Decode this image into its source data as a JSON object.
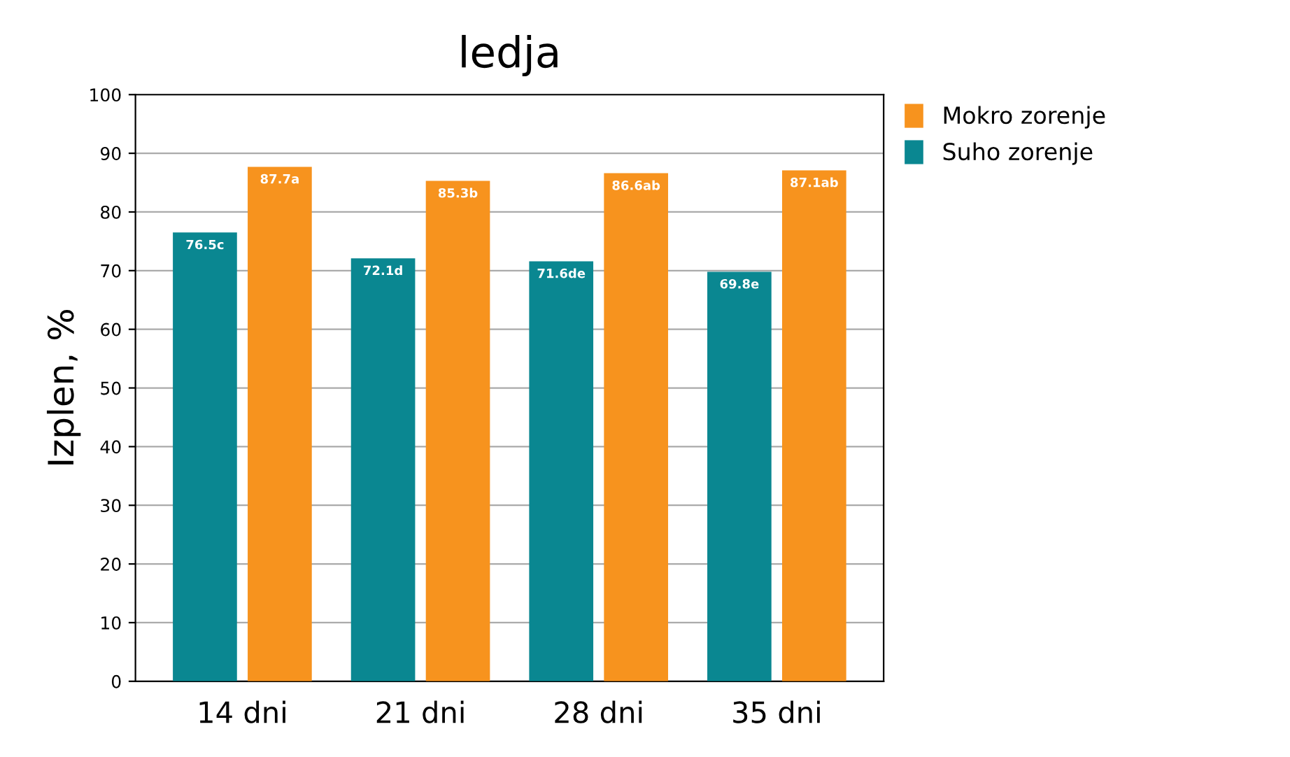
{
  "chart_data": {
    "type": "bar",
    "title": "ledja",
    "ylabel": "Izplen, %",
    "categories": [
      "14 dni",
      "21 dni",
      "28 dni",
      "35 dni"
    ],
    "series": [
      {
        "name": "Suho zorenje",
        "color": "#0a8791",
        "values": [
          76.5,
          72.1,
          71.6,
          69.8
        ],
        "value_labels": [
          "76.5c",
          "72.1d",
          "71.6de",
          "69.8e"
        ]
      },
      {
        "name": "Mokro zorenje",
        "color": "#f7931e",
        "values": [
          87.7,
          85.3,
          86.6,
          87.1
        ],
        "value_labels": [
          "87.7a",
          "85.3b",
          "86.6ab",
          "87.1ab"
        ]
      }
    ],
    "ylim": [
      0,
      100
    ],
    "yticks": [
      0,
      10,
      20,
      30,
      40,
      50,
      60,
      70,
      80,
      90,
      100
    ],
    "grid": "y",
    "legend": "top right"
  }
}
